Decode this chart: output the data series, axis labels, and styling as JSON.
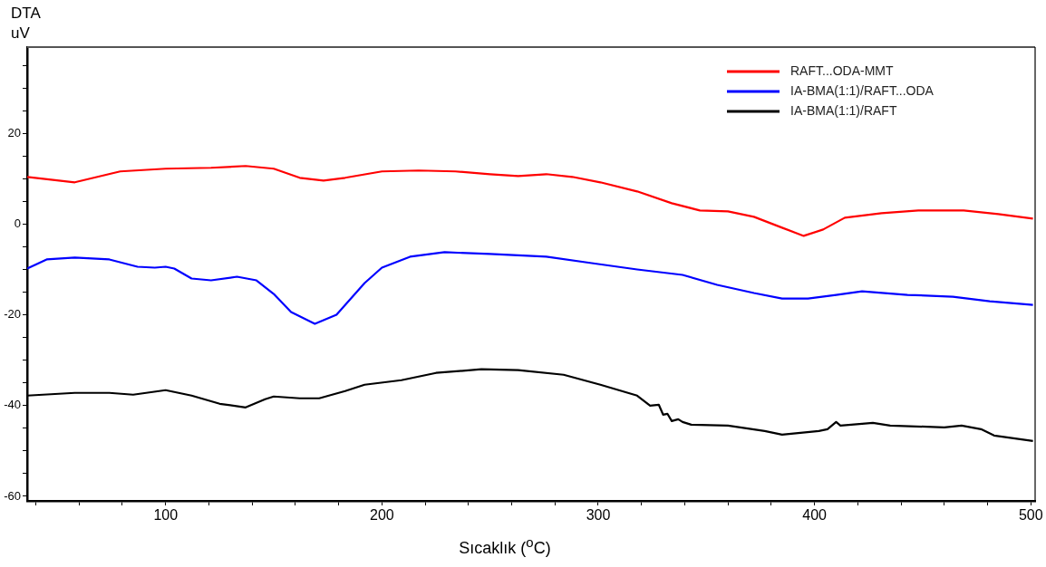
{
  "chart_data": {
    "type": "line",
    "ylabel": "DTA\nuV",
    "xlabel": "Sıcaklık ($^{o}$C)",
    "xlim": [
      36,
      502
    ],
    "ylim": [
      -61,
      39
    ],
    "xticks": [
      {
        "value": 40,
        "label": null
      },
      {
        "value": 60,
        "label": null
      },
      {
        "value": 80,
        "label": null
      },
      100,
      {
        "value": 120,
        "label": null
      },
      {
        "value": 140,
        "label": null
      },
      {
        "value": 160,
        "label": null
      },
      {
        "value": 180,
        "label": null
      },
      200,
      {
        "value": 220,
        "label": null
      },
      {
        "value": 240,
        "label": null
      },
      {
        "value": 260,
        "label": null
      },
      {
        "value": 280,
        "label": null
      },
      300,
      {
        "value": 320,
        "label": null
      },
      {
        "value": 340,
        "label": null
      },
      {
        "value": 360,
        "label": null
      },
      {
        "value": 380,
        "label": null
      },
      400,
      {
        "value": 420,
        "label": null
      },
      {
        "value": 440,
        "label": null
      },
      {
        "value": 460,
        "label": null
      },
      {
        "value": 480,
        "label": null
      },
      500
    ],
    "yticks": [
      -60,
      {
        "value": -55,
        "label": null
      },
      {
        "value": -50,
        "label": null
      },
      {
        "value": -45,
        "label": null
      },
      -40,
      {
        "value": -35,
        "label": null
      },
      {
        "value": -30,
        "label": null
      },
      {
        "value": -25,
        "label": null
      },
      -20,
      {
        "value": -15,
        "label": null
      },
      {
        "value": -10,
        "label": null
      },
      {
        "value": -5,
        "label": null
      },
      0,
      {
        "value": 5,
        "label": null
      },
      {
        "value": 10,
        "label": null
      },
      {
        "value": 15,
        "label": null
      },
      20,
      {
        "value": 25,
        "label": null
      },
      {
        "value": 30,
        "label": null
      },
      {
        "value": 35,
        "label": null
      }
    ],
    "grid": false,
    "legend": "top right",
    "marker": "none",
    "line_style": "solid",
    "series": [
      {
        "name": "RAFT...ODA-MMT",
        "color": "#ff0000",
        "x": [
          36,
          58,
          79,
          100,
          121,
          137,
          150,
          162,
          173,
          183,
          200,
          217,
          234,
          250,
          263,
          276,
          288,
          301,
          318,
          334,
          347,
          360,
          372,
          385,
          395,
          404,
          414,
          431,
          448,
          469,
          485,
          501
        ],
        "values": [
          10.4,
          9.2,
          11.6,
          12.2,
          12.4,
          12.8,
          12.2,
          10.2,
          9.6,
          10.2,
          11.6,
          11.8,
          11.6,
          11,
          10.6,
          11,
          10.4,
          9.2,
          7.2,
          4.6,
          3,
          2.8,
          1.6,
          -0.8,
          -2.6,
          -1.2,
          1.4,
          2.4,
          3,
          3,
          2.2,
          1.2
        ]
      },
      {
        "name": "IA-BMA(1:1)/RAFT...ODA",
        "color": "#0000ff",
        "x": [
          36,
          45,
          58,
          74,
          87,
          95,
          100,
          104,
          112,
          121,
          133,
          142,
          150,
          158,
          169,
          179,
          192,
          200,
          213,
          229,
          250,
          276,
          297,
          318,
          339,
          355,
          372,
          385,
          397,
          410,
          422,
          443,
          464,
          481,
          501
        ],
        "values": [
          -9.8,
          -7.8,
          -7.4,
          -7.8,
          -9.4,
          -9.6,
          -9.4,
          -9.8,
          -12,
          -12.4,
          -11.6,
          -12.4,
          -15.4,
          -19.4,
          -22,
          -20,
          -13,
          -9.6,
          -7.2,
          -6.2,
          -6.6,
          -7.2,
          -8.6,
          -10,
          -11.2,
          -13.4,
          -15.2,
          -16.4,
          -16.4,
          -15.6,
          -14.8,
          -15.6,
          -16,
          -17,
          -17.8
        ]
      },
      {
        "name": "IA-BMA(1:1)/RAFT",
        "color": "#000000",
        "x": [
          36,
          58,
          74,
          85,
          100,
          112,
          125,
          137,
          146,
          150,
          162,
          171,
          183,
          192,
          209,
          225,
          246,
          263,
          284,
          301,
          318,
          324,
          328,
          330,
          332,
          334,
          337,
          339,
          343,
          360,
          377,
          385,
          402,
          406,
          410,
          412,
          427,
          435,
          460,
          468,
          477,
          483,
          501
        ],
        "values": [
          -37.8,
          -37.2,
          -37.2,
          -37.6,
          -36.6,
          -37.8,
          -39.6,
          -40.4,
          -38.6,
          -38,
          -38.4,
          -38.4,
          -36.8,
          -35.4,
          -34.4,
          -32.8,
          -32,
          -32.2,
          -33.2,
          -35.4,
          -37.8,
          -40,
          -39.8,
          -42,
          -41.8,
          -43.4,
          -43,
          -43.6,
          -44.2,
          -44.4,
          -45.6,
          -46.4,
          -45.6,
          -45.2,
          -43.6,
          -44.4,
          -43.8,
          -44.4,
          -44.8,
          -44.4,
          -45.2,
          -46.6,
          -47.8
        ]
      }
    ]
  }
}
